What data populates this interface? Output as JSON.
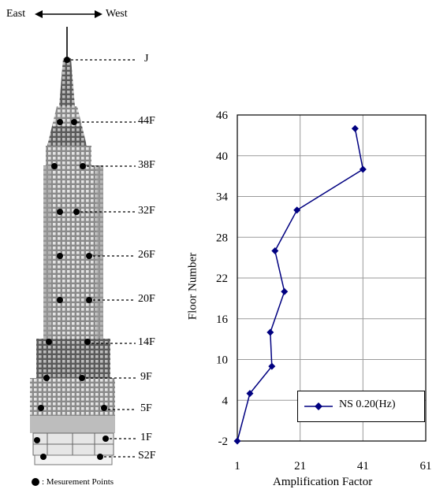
{
  "compass": {
    "left": "East",
    "right": "West"
  },
  "building": {
    "floor_labels": [
      "J",
      "44F",
      "38F",
      "32F",
      "26F",
      "20F",
      "14F",
      "9F",
      "5F",
      "1F",
      "S2F"
    ],
    "caption": ": Mesurement Points"
  },
  "chart_data": {
    "type": "line",
    "title": "",
    "xlabel": "Amplification Factor",
    "ylabel": "Floor Number",
    "xlim": [
      1,
      61
    ],
    "ylim": [
      -2,
      46
    ],
    "xticks": [
      1,
      21,
      41,
      61
    ],
    "yticks": [
      -2,
      4,
      10,
      16,
      22,
      28,
      34,
      40,
      46
    ],
    "grid": true,
    "legend_position": "bottom-right",
    "series": [
      {
        "name": "NS 0.20(Hz)",
        "color": "#000080",
        "marker": "diamond",
        "points": [
          {
            "x": 38.5,
            "y": 44
          },
          {
            "x": 41,
            "y": 38
          },
          {
            "x": 20,
            "y": 32
          },
          {
            "x": 13,
            "y": 26
          },
          {
            "x": 16,
            "y": 20
          },
          {
            "x": 11.5,
            "y": 14
          },
          {
            "x": 12,
            "y": 9
          },
          {
            "x": 5,
            "y": 5
          },
          {
            "x": 1,
            "y": -2
          }
        ]
      }
    ]
  }
}
